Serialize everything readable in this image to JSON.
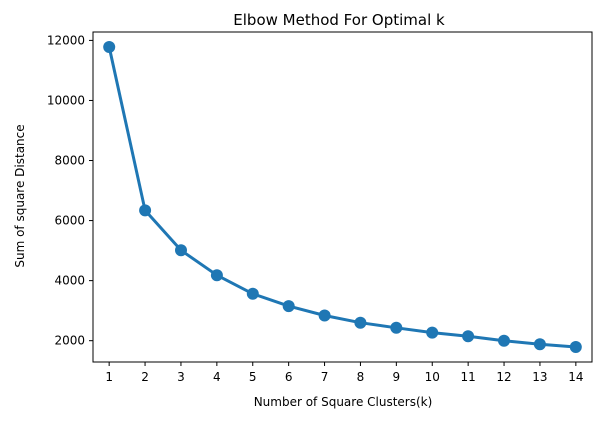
{
  "chart_data": {
    "type": "line",
    "title": "Elbow Method For Optimal k",
    "xlabel": "Number of Square Clusters(k)",
    "ylabel": "Sum of square Distance",
    "x": [
      1,
      2,
      3,
      4,
      5,
      6,
      7,
      8,
      9,
      10,
      11,
      12,
      13,
      14
    ],
    "series": [
      {
        "values": [
          11780,
          6340,
          5010,
          4180,
          3560,
          3150,
          2840,
          2600,
          2430,
          2270,
          2150,
          2000,
          1880,
          1790
        ],
        "color": "#1f77b4",
        "marker": "circle"
      }
    ],
    "xticks": [
      1,
      2,
      3,
      4,
      5,
      6,
      7,
      8,
      9,
      10,
      11,
      12,
      13,
      14
    ],
    "yticks": [
      2000,
      4000,
      6000,
      8000,
      10000,
      12000
    ],
    "xlim": [
      0.55,
      14.45
    ],
    "ylim": [
      1290,
      12280
    ],
    "grid": false,
    "legend": "none"
  }
}
